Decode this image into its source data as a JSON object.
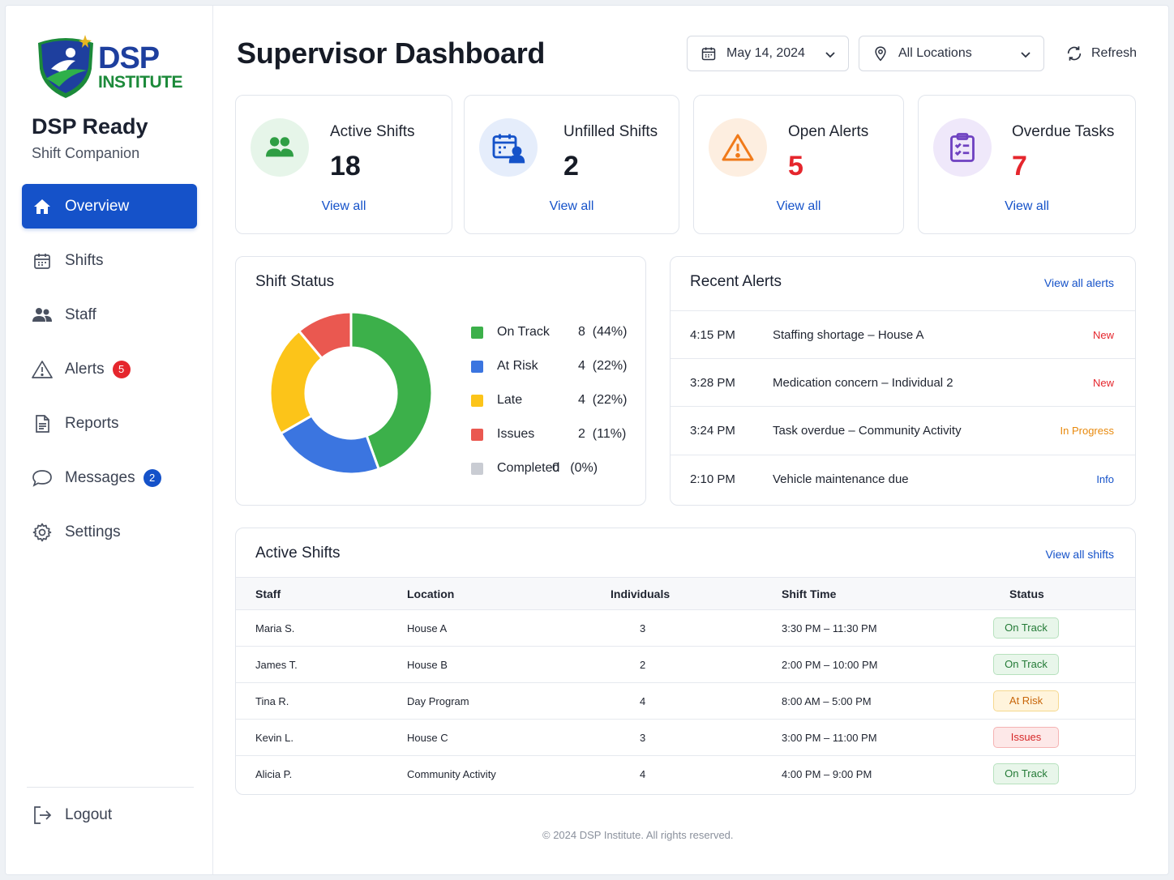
{
  "brand": {
    "logo_line1": "DSP",
    "logo_line2": "INSTITUTE",
    "app_title": "DSP Ready",
    "app_subtitle": "Shift Companion"
  },
  "nav": {
    "items": [
      {
        "label": "Overview",
        "icon": "home-icon",
        "active": true
      },
      {
        "label": "Shifts",
        "icon": "calendar-icon"
      },
      {
        "label": "Staff",
        "icon": "users-icon"
      },
      {
        "label": "Alerts",
        "icon": "warning-icon",
        "badge": "5"
      },
      {
        "label": "Reports",
        "icon": "document-icon"
      },
      {
        "label": "Messages",
        "icon": "chat-icon",
        "badge": "2"
      },
      {
        "label": "Settings",
        "icon": "gear-icon"
      }
    ],
    "logout": "Logout"
  },
  "header": {
    "title": "Supervisor Dashboard",
    "date": "May 14, 2024",
    "location": "All Locations",
    "refresh": "Refresh"
  },
  "kpis": [
    {
      "label": "Active Shifts",
      "value": "18",
      "link": "View all",
      "color": "#2f9e44"
    },
    {
      "label": "Unfilled Shifts",
      "value": "2",
      "link": "View all",
      "color": "#1552c9"
    },
    {
      "label": "Open Alerts",
      "value": "5",
      "link": "View all",
      "color": "#f07a1a"
    },
    {
      "label": "Overdue Tasks",
      "value": "7",
      "link": "View all",
      "color": "#6f42c1"
    }
  ],
  "shift_status": {
    "title": "Shift Status",
    "items": [
      {
        "label": "On Track",
        "count": "8",
        "pct": "(44%)",
        "color": "#3cb04a"
      },
      {
        "label": "At Risk",
        "count": "4",
        "pct": "(22%)",
        "color": "#3b75e0"
      },
      {
        "label": "Late",
        "count": "4",
        "pct": "(22%)",
        "color": "#fcc419"
      },
      {
        "label": "Issues",
        "count": "2",
        "pct": "(11%)",
        "color": "#ea5850"
      },
      {
        "label": "Completed",
        "count": "0",
        "pct": "(0%)",
        "color": "#c9ccd3"
      }
    ]
  },
  "chart_data": {
    "type": "pie",
    "categories": [
      "On Track",
      "At Risk",
      "Late",
      "Issues",
      "Completed"
    ],
    "values": [
      8,
      4,
      4,
      2,
      0
    ],
    "title": "Shift Status"
  },
  "recent_alerts": {
    "title": "Recent Alerts",
    "link": "View all alerts",
    "items": [
      {
        "time": "4:15 PM",
        "text": "Staffing shortage – House A",
        "status": "New",
        "color": "#e5262d"
      },
      {
        "time": "3:28 PM",
        "text": "Medication concern – Individual 2",
        "status": "New",
        "color": "#e5262d"
      },
      {
        "time": "3:24 PM",
        "text": "Task overdue – Community Activity",
        "status": "In Progress",
        "color": "#e8890c"
      },
      {
        "time": "2:10 PM",
        "text": "Vehicle maintenance due",
        "status": "Info",
        "color": "#1552c9"
      }
    ]
  },
  "active_shifts": {
    "title": "Active Shifts",
    "link": "View all shifts",
    "columns": [
      "Staff",
      "Location",
      "Individuals",
      "Shift Time",
      "Status"
    ],
    "rows": [
      {
        "staff": "Maria S.",
        "location": "House A",
        "individuals": "3",
        "time": "3:30 PM – 11:30 PM",
        "status": "On Track"
      },
      {
        "staff": "James T.",
        "location": "House B",
        "individuals": "2",
        "time": "2:00 PM – 10:00 PM",
        "status": "On Track"
      },
      {
        "staff": "Tina R.",
        "location": "Day Program",
        "individuals": "4",
        "time": "8:00 AM – 5:00 PM",
        "status": "At Risk"
      },
      {
        "staff": "Kevin L.",
        "location": "House C",
        "individuals": "3",
        "time": "3:00 PM – 11:00 PM",
        "status": "Issues"
      },
      {
        "staff": "Alicia P.",
        "location": "Community Activity",
        "individuals": "4",
        "time": "4:00 PM – 9:00 PM",
        "status": "On Track"
      }
    ]
  },
  "footer": "© 2024 DSP Institute. All rights reserved."
}
